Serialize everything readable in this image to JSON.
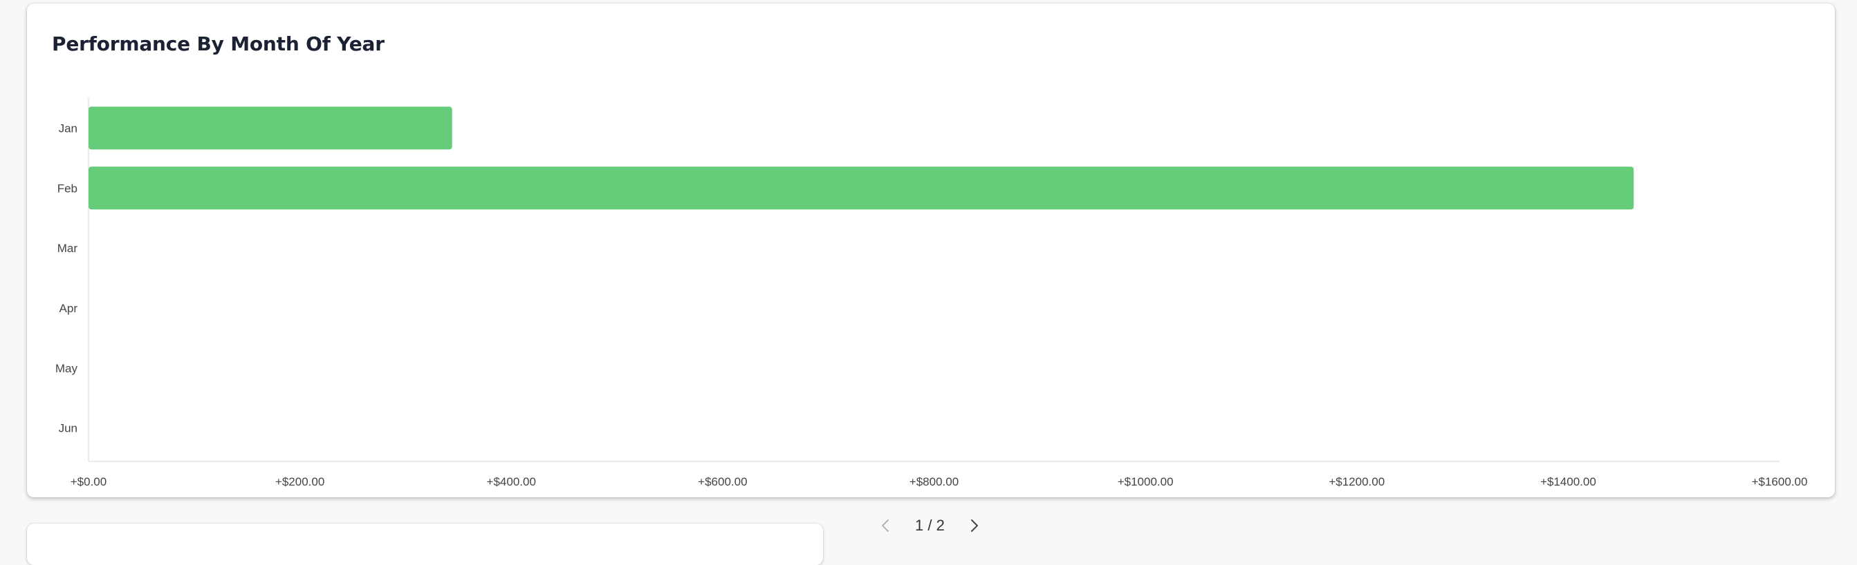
{
  "card": {
    "title": "Performance By Month Of Year"
  },
  "chart_data": {
    "type": "bar",
    "orientation": "horizontal",
    "title": "Performance By Month Of Year",
    "categories": [
      "Jan",
      "Feb",
      "Mar",
      "Apr",
      "May",
      "Jun"
    ],
    "values": [
      344,
      1462,
      null,
      null,
      null,
      null
    ],
    "xlim": [
      0,
      1600
    ],
    "x_ticks": [
      0,
      200,
      400,
      600,
      800,
      1000,
      1200,
      1400,
      1600
    ],
    "x_tick_labels": [
      "+$0.00",
      "+$200.00",
      "+$400.00",
      "+$600.00",
      "+$800.00",
      "+$1000.00",
      "+$1200.00",
      "+$1400.00",
      "+$1600.00"
    ],
    "bar_color": "#66cc7a",
    "axis_color": "#e3e3e3",
    "grid": false
  },
  "pagination": {
    "label": "1 / 2",
    "prev_icon": "chevron-left-icon",
    "next_icon": "chevron-right-icon"
  }
}
